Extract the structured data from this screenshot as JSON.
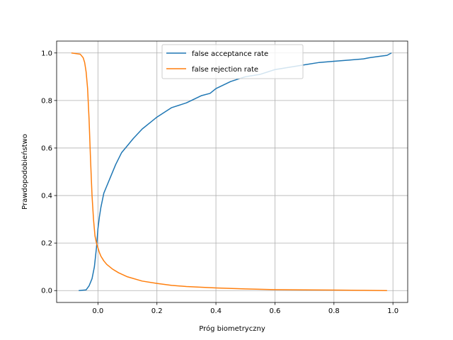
{
  "chart_data": {
    "type": "line",
    "title": "",
    "xlabel": "Próg biometryczny",
    "ylabel": "Prawdopodobieństwo",
    "xlim": [
      -0.14,
      1.05
    ],
    "ylim": [
      -0.05,
      1.05
    ],
    "xticks": [
      0.0,
      0.2,
      0.4,
      0.6,
      0.8,
      1.0
    ],
    "xtick_labels": [
      "0.0",
      "0.2",
      "0.4",
      "0.6",
      "0.8",
      "1.0"
    ],
    "yticks": [
      0.0,
      0.2,
      0.4,
      0.6,
      0.8,
      1.0
    ],
    "ytick_labels": [
      "0.0",
      "0.2",
      "0.4",
      "0.6",
      "0.8",
      "1.0"
    ],
    "grid": true,
    "legend_position": "top-center",
    "series": [
      {
        "name": "false acceptance rate",
        "color": "#1f77b4",
        "x": [
          -0.065,
          -0.04,
          -0.03,
          -0.02,
          -0.012,
          -0.005,
          0.0,
          0.005,
          0.01,
          0.015,
          0.02,
          0.03,
          0.04,
          0.06,
          0.08,
          0.1,
          0.12,
          0.15,
          0.18,
          0.2,
          0.25,
          0.3,
          0.35,
          0.38,
          0.4,
          0.45,
          0.5,
          0.55,
          0.6,
          0.65,
          0.7,
          0.75,
          0.8,
          0.85,
          0.9,
          0.92,
          0.95,
          0.98,
          0.995
        ],
        "y": [
          0.0,
          0.003,
          0.02,
          0.05,
          0.1,
          0.18,
          0.26,
          0.31,
          0.35,
          0.38,
          0.41,
          0.44,
          0.47,
          0.53,
          0.58,
          0.61,
          0.64,
          0.68,
          0.71,
          0.73,
          0.77,
          0.79,
          0.82,
          0.83,
          0.85,
          0.88,
          0.9,
          0.91,
          0.93,
          0.94,
          0.95,
          0.96,
          0.965,
          0.97,
          0.975,
          0.98,
          0.985,
          0.99,
          1.0
        ]
      },
      {
        "name": "false rejection rate",
        "color": "#ff7f0e",
        "x": [
          -0.09,
          -0.06,
          -0.05,
          -0.045,
          -0.04,
          -0.035,
          -0.03,
          -0.025,
          -0.02,
          -0.015,
          -0.01,
          -0.005,
          0.0,
          0.005,
          0.01,
          0.02,
          0.03,
          0.05,
          0.07,
          0.1,
          0.15,
          0.2,
          0.25,
          0.3,
          0.4,
          0.5,
          0.6,
          0.7,
          0.8,
          0.9,
          0.98
        ],
        "y": [
          1.0,
          0.995,
          0.98,
          0.96,
          0.92,
          0.85,
          0.72,
          0.55,
          0.4,
          0.3,
          0.23,
          0.2,
          0.18,
          0.16,
          0.145,
          0.125,
          0.11,
          0.09,
          0.075,
          0.058,
          0.04,
          0.03,
          0.022,
          0.017,
          0.011,
          0.007,
          0.004,
          0.003,
          0.002,
          0.001,
          0.0
        ]
      }
    ]
  }
}
